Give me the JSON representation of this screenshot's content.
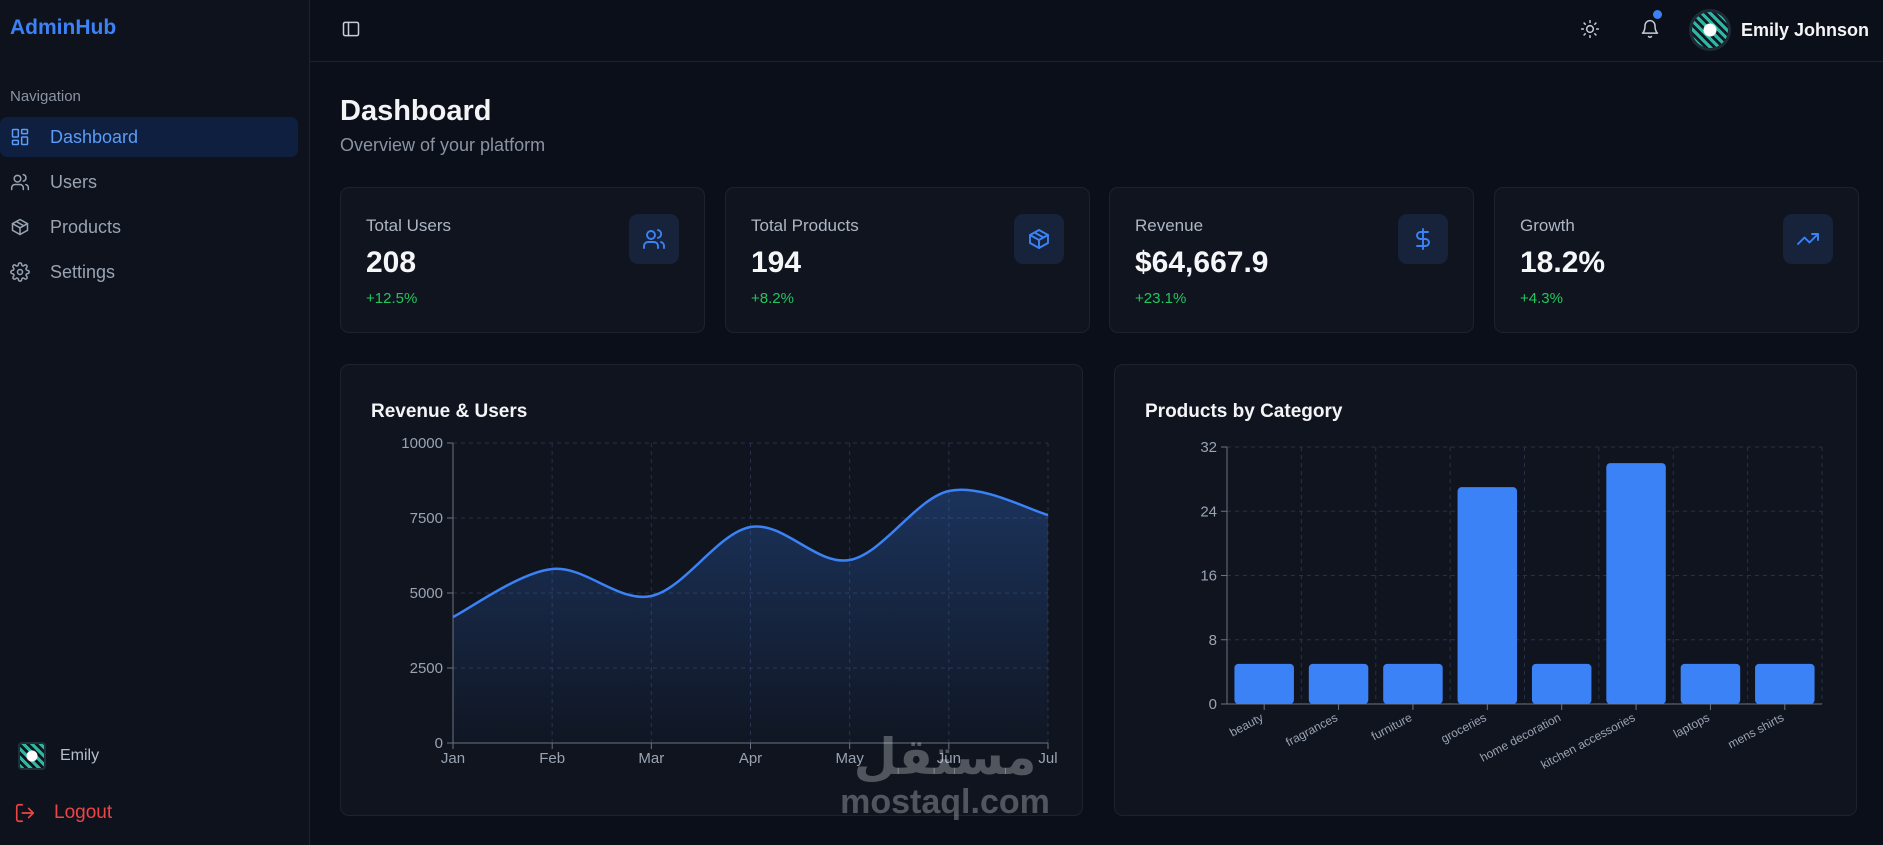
{
  "app": {
    "brand": "AdminHub"
  },
  "sidebar": {
    "heading": "Navigation",
    "items": [
      {
        "label": "Dashboard",
        "icon": "grid-icon",
        "active": true
      },
      {
        "label": "Users",
        "icon": "users-icon",
        "active": false
      },
      {
        "label": "Products",
        "icon": "package-icon",
        "active": false
      },
      {
        "label": "Settings",
        "icon": "gear-icon",
        "active": false
      }
    ],
    "user_name": "Emily",
    "logout_label": "Logout"
  },
  "topbar": {
    "user_name": "Emily Johnson",
    "notification_dot": true
  },
  "page": {
    "title": "Dashboard",
    "subtitle": "Overview of your platform"
  },
  "stats": [
    {
      "label": "Total Users",
      "value": "208",
      "change": "+12.5%",
      "icon": "users-icon"
    },
    {
      "label": "Total Products",
      "value": "194",
      "change": "+8.2%",
      "icon": "package-icon"
    },
    {
      "label": "Revenue",
      "value": "$64,667.9",
      "change": "+23.1%",
      "icon": "dollar-icon"
    },
    {
      "label": "Growth",
      "value": "18.2%",
      "change": "+4.3%",
      "icon": "trending-up-icon"
    }
  ],
  "colors": {
    "accent": "#3b82f6",
    "positive": "#22c55e",
    "danger": "#ef4444"
  },
  "watermark": {
    "arabic": "مستقل",
    "latin": "mostaql.com"
  },
  "chart_data": [
    {
      "type": "area",
      "title": "Revenue & Users",
      "x": [
        "Jan",
        "Feb",
        "Mar",
        "Apr",
        "May",
        "Jun",
        "Jul"
      ],
      "series": [
        {
          "values": [
            4200,
            5800,
            4900,
            7200,
            6100,
            8400,
            7600
          ]
        }
      ],
      "ylim": [
        0,
        10000
      ],
      "yticks": [
        0,
        2500,
        5000,
        7500,
        10000
      ],
      "grid": true
    },
    {
      "type": "bar",
      "title": "Products by Category",
      "categories": [
        "beauty",
        "fragrances",
        "furniture",
        "groceries",
        "home decoration",
        "kitchen accessories",
        "laptops",
        "mens shirts"
      ],
      "values": [
        5,
        5,
        5,
        27,
        5,
        30,
        5,
        5
      ],
      "ylim": [
        0,
        32
      ],
      "yticks": [
        0,
        8,
        16,
        24,
        32
      ],
      "grid": true
    }
  ]
}
